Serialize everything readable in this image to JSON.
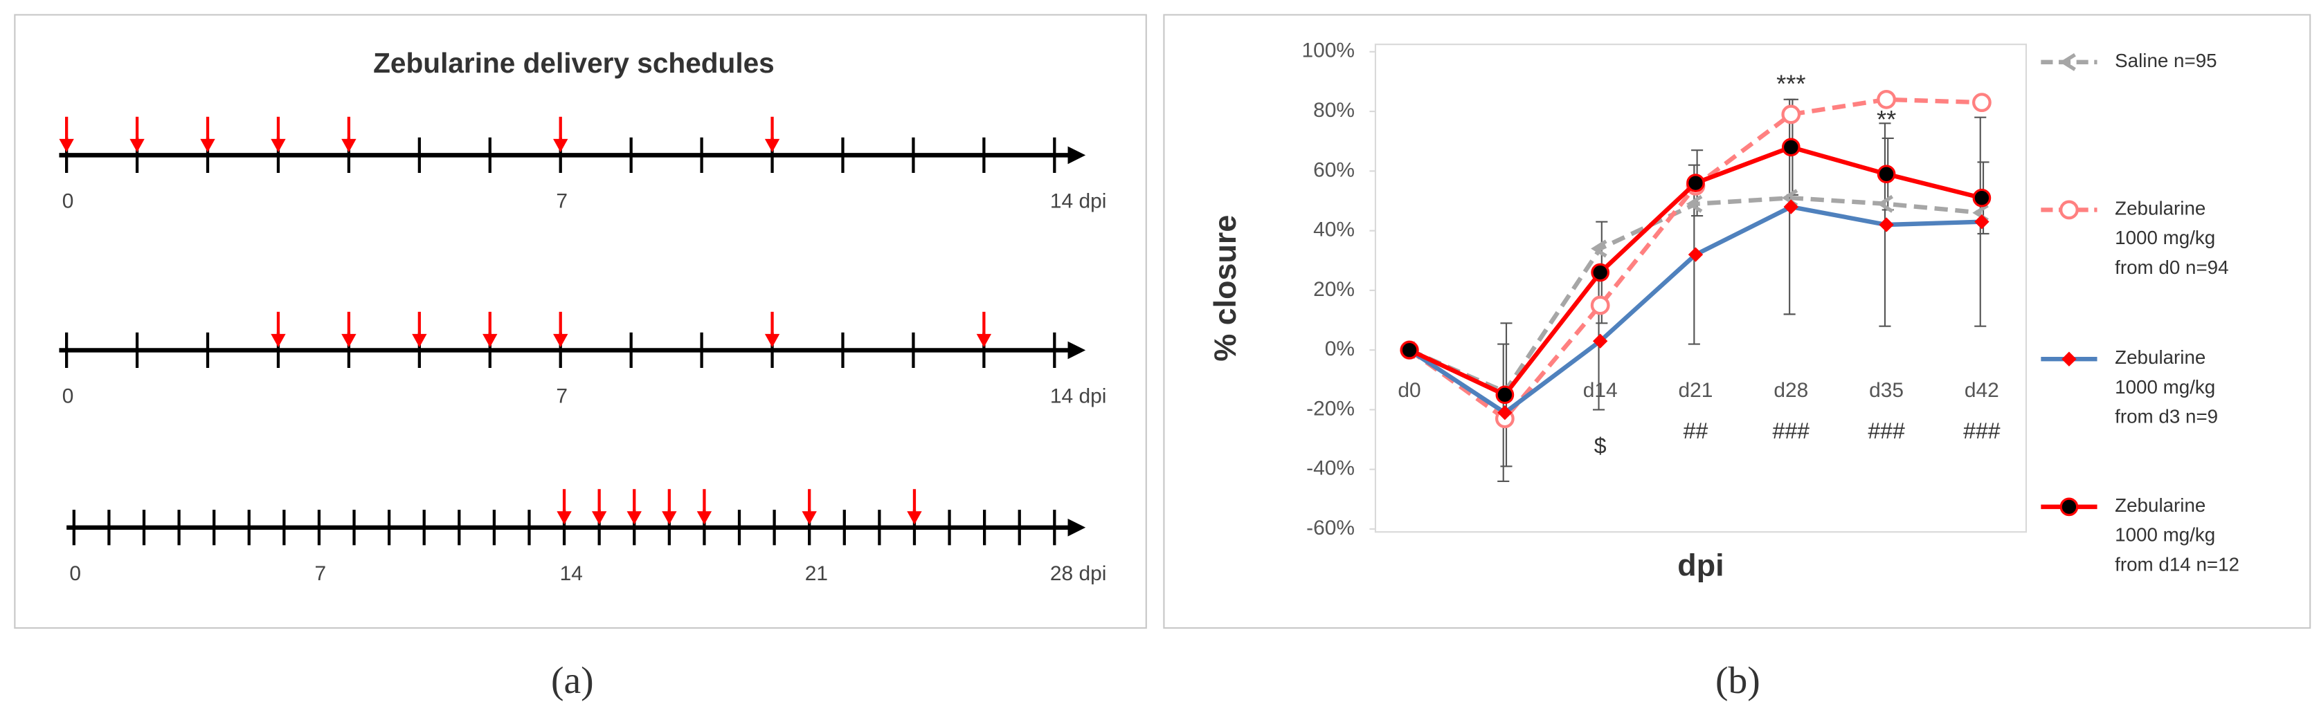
{
  "chart_data": [
    {
      "type": "timeline",
      "title": "Zebularine delivery schedules",
      "panel_label": "(a)",
      "color": "#ff0000",
      "timelines": [
        {
          "xlim": [
            0,
            14
          ],
          "xticks": [
            0,
            7,
            {
              "value": 14,
              "label": "14 dpi"
            }
          ],
          "minor_xticks": [
            0,
            1,
            2,
            3,
            4,
            5,
            6,
            7,
            8,
            9,
            10,
            11,
            12,
            13,
            14
          ],
          "arrows": [
            0,
            1,
            2,
            3,
            4,
            7,
            10
          ]
        },
        {
          "xlim": [
            0,
            14
          ],
          "xticks": [
            0,
            7,
            {
              "value": 14,
              "label": "14 dpi"
            }
          ],
          "minor_xticks": [
            0,
            1,
            2,
            3,
            4,
            5,
            6,
            7,
            8,
            9,
            10,
            11,
            12,
            13,
            14
          ],
          "arrows": [
            3,
            4,
            5,
            6,
            7,
            10,
            13
          ]
        },
        {
          "xlim": [
            0,
            28
          ],
          "xticks": [
            0,
            7,
            14,
            21,
            {
              "value": 28,
              "label": "28 dpi"
            }
          ],
          "minor_xticks": [
            0,
            1,
            2,
            3,
            4,
            5,
            6,
            7,
            8,
            9,
            10,
            11,
            12,
            13,
            14,
            15,
            16,
            17,
            18,
            19,
            20,
            21,
            22,
            23,
            24,
            25,
            26,
            27,
            28
          ],
          "arrows": [
            14,
            15,
            16,
            17,
            18,
            21,
            24
          ]
        }
      ]
    },
    {
      "type": "line",
      "panel_label": "(b)",
      "x_label": "dpi",
      "y_label": "% closure",
      "categories": [
        "d0",
        null,
        "d14",
        "d21",
        "d28",
        "d35",
        "d42"
      ],
      "ylim": [
        -60,
        100
      ],
      "yticks": [
        {
          "value": -60,
          "label": "-60%"
        },
        {
          "value": -40,
          "label": "-40%"
        },
        {
          "value": -20,
          "label": "-20%"
        },
        {
          "value": 0,
          "label": "0%"
        },
        {
          "value": 20,
          "label": "20%"
        },
        {
          "value": 40,
          "label": "40%"
        },
        {
          "value": 60,
          "label": "60%"
        },
        {
          "value": 80,
          "label": "80%"
        },
        {
          "value": 100,
          "label": "100%"
        }
      ],
      "series": [
        {
          "name": "Saline n=95",
          "color": "#a6a6a6",
          "dashed": true,
          "marker": "arrow",
          "values": [
            0,
            -14,
            34,
            49,
            51,
            49,
            46
          ]
        },
        {
          "name": "Zebularine 1000 mg/kg from d0 n=94",
          "color": "#ff8080",
          "dashed": true,
          "marker": "open-circle",
          "values": [
            0,
            -23,
            15,
            55,
            79,
            84,
            83
          ]
        },
        {
          "name": "Zebularine 1000 mg/kg from d3 n=9",
          "color": "#4f81bd",
          "dashed": false,
          "marker": "diamond",
          "values": [
            0,
            -21,
            3,
            32,
            48,
            42,
            43
          ],
          "errors": [
            0,
            23,
            23,
            30,
            36,
            34,
            35
          ]
        },
        {
          "name": "Zebularine 1000 mg/kg from d14 n=12",
          "color": "#ff0000",
          "dashed": false,
          "marker": "circle",
          "values": [
            0,
            -15,
            26,
            56,
            68,
            59,
            51
          ],
          "errors": [
            0,
            24,
            17,
            11,
            16,
            12,
            12
          ]
        }
      ],
      "significance_above": [
        null,
        null,
        null,
        null,
        "***",
        "**",
        null
      ],
      "significance_below": [
        null,
        null,
        "$",
        "##",
        "###",
        "###",
        "###"
      ]
    }
  ]
}
